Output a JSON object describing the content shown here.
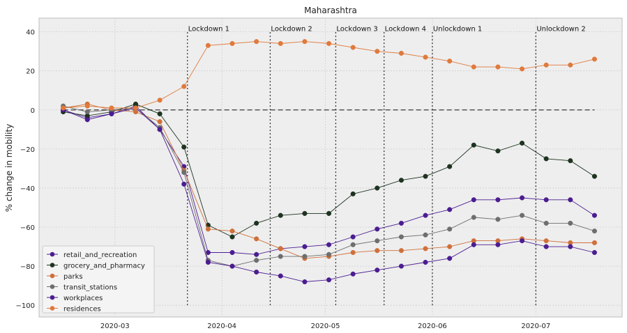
{
  "chart_data": {
    "type": "line",
    "title": "Maharashtra",
    "ylabel": "% change in mobility",
    "xlabel": "",
    "ylim": [
      -106,
      47
    ],
    "xlim": [
      "2020-02-08",
      "2020-07-26"
    ],
    "grid": true,
    "legend_position": "lower-left",
    "x_ticks": [
      {
        "date": "2020-03-01",
        "label": "2020-03"
      },
      {
        "date": "2020-04-01",
        "label": "2020-04"
      },
      {
        "date": "2020-05-01",
        "label": "2020-05"
      },
      {
        "date": "2020-06-01",
        "label": "2020-06"
      },
      {
        "date": "2020-07-01",
        "label": "2020-07"
      }
    ],
    "y_ticks": [
      {
        "value": 40,
        "label": "40"
      },
      {
        "value": 20,
        "label": "20"
      },
      {
        "value": 0,
        "label": "0"
      },
      {
        "value": -20,
        "label": "−20"
      },
      {
        "value": -40,
        "label": "−40"
      },
      {
        "value": -60,
        "label": "−60"
      },
      {
        "value": -80,
        "label": "−80"
      },
      {
        "value": -100,
        "label": "−100"
      }
    ],
    "reference_line": {
      "value": 0,
      "style": "dashed",
      "color": "#555555"
    },
    "annotations": [
      {
        "date": "2020-03-22",
        "label": "Lockdown 1"
      },
      {
        "date": "2020-04-15",
        "label": "Lockdown 2"
      },
      {
        "date": "2020-05-04",
        "label": "Lockdown 3"
      },
      {
        "date": "2020-05-18",
        "label": "Lockdown 4"
      },
      {
        "date": "2020-06-01",
        "label": "Unlockdown 1"
      },
      {
        "date": "2020-07-01",
        "label": "Unlockdown 2"
      }
    ],
    "x": [
      "2020-02-15",
      "2020-02-22",
      "2020-02-29",
      "2020-03-07",
      "2020-03-14",
      "2020-03-21",
      "2020-03-28",
      "2020-04-04",
      "2020-04-11",
      "2020-04-18",
      "2020-04-25",
      "2020-05-02",
      "2020-05-09",
      "2020-05-16",
      "2020-05-23",
      "2020-05-30",
      "2020-06-06",
      "2020-06-13",
      "2020-06-20",
      "2020-06-27",
      "2020-07-04",
      "2020-07-11",
      "2020-07-18"
    ],
    "series": [
      {
        "name": "retail_and_recreation",
        "color": "#4b1d91",
        "values": [
          0,
          -4,
          -2,
          2,
          -10,
          -29,
          -73,
          -73,
          -74,
          -71,
          -70,
          -69,
          -65,
          -61,
          -58,
          -54,
          -51,
          -46,
          -46,
          -45,
          -46,
          -46,
          -54
        ]
      },
      {
        "name": "grocery_and_pharmacy",
        "color": "#1e3320",
        "values": [
          -1,
          -3,
          -1,
          3,
          -2,
          -19,
          -59,
          -65,
          -58,
          -54,
          -53,
          -53,
          -43,
          -40,
          -36,
          -34,
          -29,
          -18,
          -21,
          -17,
          -25,
          -26,
          -34
        ]
      },
      {
        "name": "parks",
        "color": "#d0703a",
        "values": [
          1,
          3,
          0,
          -1,
          -6,
          -31,
          -61,
          -62,
          -66,
          -71,
          -76,
          -75,
          -73,
          -72,
          -72,
          -71,
          -70,
          -67,
          -67,
          -66,
          -67,
          -68,
          -68
        ]
      },
      {
        "name": "transit_stations",
        "color": "#6e6e6e",
        "values": [
          2,
          -1,
          0,
          1,
          -9,
          -32,
          -77,
          -80,
          -77,
          -75,
          -75,
          -74,
          -69,
          -67,
          -65,
          -64,
          -61,
          -55,
          -56,
          -54,
          -58,
          -58,
          -62
        ]
      },
      {
        "name": "workplaces",
        "color": "#4b1d91",
        "values": [
          0,
          -5,
          -2,
          1,
          -10,
          -38,
          -78,
          -80,
          -83,
          -85,
          -88,
          -87,
          -84,
          -82,
          -80,
          -78,
          -76,
          -69,
          -69,
          -67,
          -70,
          -70,
          -73
        ]
      },
      {
        "name": "residences",
        "color": "#e07a3c",
        "values": [
          1,
          2,
          1,
          1,
          5,
          12,
          33,
          34,
          35,
          34,
          35,
          34,
          32,
          30,
          29,
          27,
          25,
          22,
          22,
          21,
          23,
          23,
          26
        ]
      }
    ]
  }
}
